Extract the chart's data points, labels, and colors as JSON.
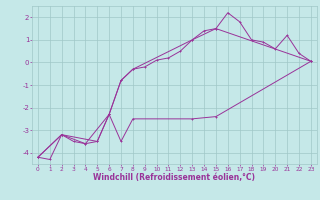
{
  "xlabel": "Windchill (Refroidissement éolien,°C)",
  "background_color": "#c5e8e8",
  "grid_color": "#a0c8c8",
  "line_color": "#993399",
  "xlim": [
    -0.5,
    23.5
  ],
  "ylim": [
    -4.5,
    2.5
  ],
  "yticks": [
    -4,
    -3,
    -2,
    -1,
    0,
    1,
    2
  ],
  "xticks": [
    0,
    1,
    2,
    3,
    4,
    5,
    6,
    7,
    8,
    9,
    10,
    11,
    12,
    13,
    14,
    15,
    16,
    17,
    18,
    19,
    20,
    21,
    22,
    23
  ],
  "series1_x": [
    0,
    1,
    2,
    3,
    4,
    5,
    6,
    7,
    8,
    9,
    10,
    11,
    12,
    13,
    14,
    15,
    16,
    17,
    18,
    19,
    20,
    21,
    22,
    23
  ],
  "series1_y": [
    -4.2,
    -4.3,
    -3.2,
    -3.5,
    -3.6,
    -3.5,
    -2.3,
    -0.8,
    -0.3,
    -0.2,
    0.1,
    0.2,
    0.5,
    1.0,
    1.4,
    1.5,
    2.2,
    1.8,
    1.0,
    0.9,
    0.6,
    1.2,
    0.4,
    0.05
  ],
  "series2_x": [
    0,
    2,
    4,
    6,
    7,
    8,
    13,
    15,
    23
  ],
  "series2_y": [
    -4.2,
    -3.2,
    -3.6,
    -2.3,
    -0.8,
    -0.3,
    1.0,
    1.5,
    0.05
  ],
  "series3_x": [
    0,
    2,
    5,
    6,
    7,
    8,
    13,
    15,
    23
  ],
  "series3_y": [
    -4.2,
    -3.2,
    -3.5,
    -2.3,
    -3.5,
    -2.5,
    -2.5,
    -2.4,
    0.05
  ]
}
